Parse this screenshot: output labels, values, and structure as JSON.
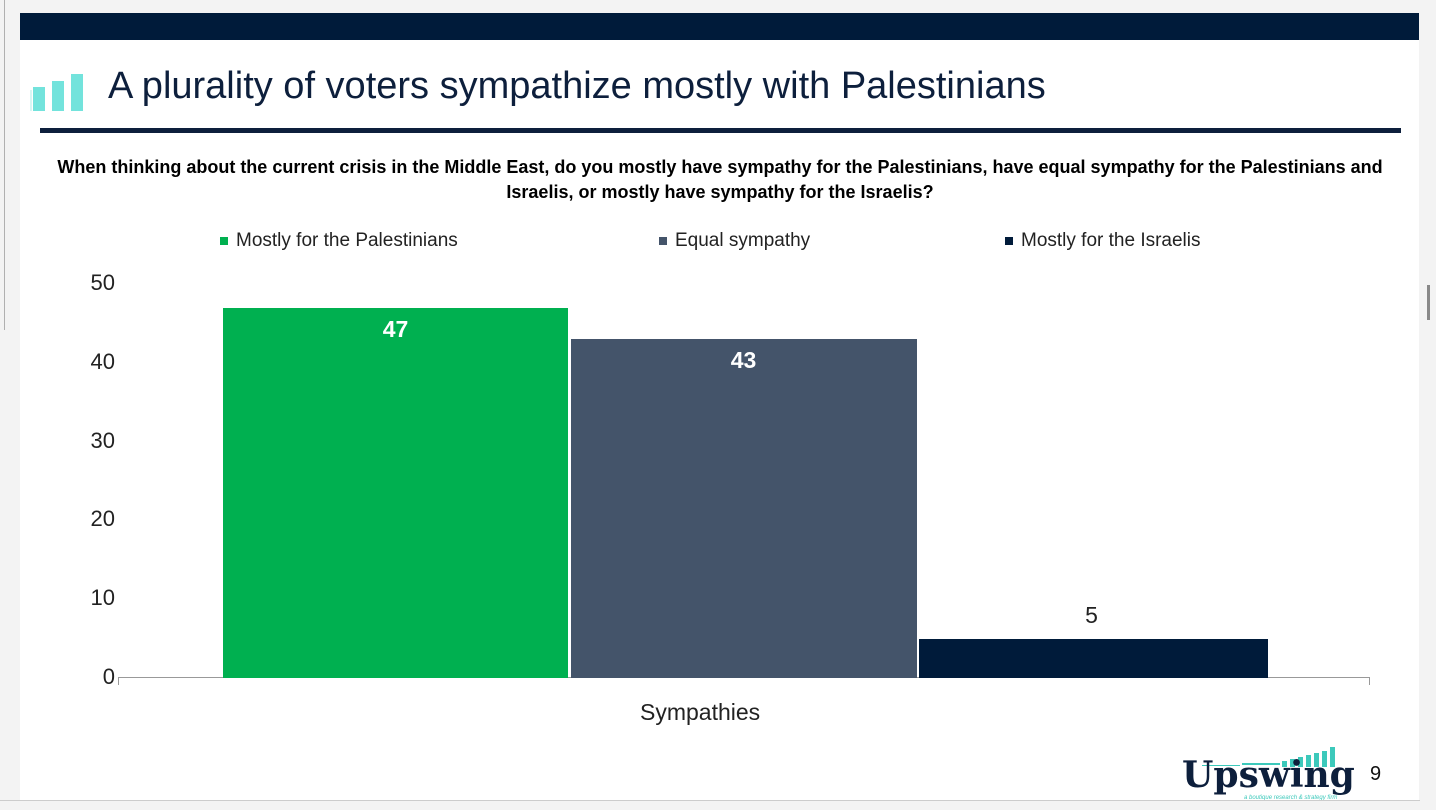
{
  "title": "A plurality of voters sympathize mostly with Palestinians",
  "question": "When thinking about the current crisis in the Middle East, do you mostly have sympathy for the Palestinians, have equal sympathy for the Palestinians and Israelis, or mostly have sympathy for the Israelis?",
  "page_number": "9",
  "logo": {
    "name": "Upswing",
    "tagline": "a boutique research & strategy firm"
  },
  "chart_data": {
    "type": "bar",
    "categories": [
      "Sympathies"
    ],
    "xlabel": "Sympathies",
    "ylim": [
      0,
      50
    ],
    "yticks": [
      "0",
      "10",
      "20",
      "30",
      "40",
      "50"
    ],
    "legend_position": "top",
    "series": [
      {
        "name": "Mostly for the Palestinians",
        "values": [
          47
        ],
        "label": "47",
        "color": "#00b050"
      },
      {
        "name": "Equal sympathy",
        "values": [
          43
        ],
        "label": "43",
        "color": "#44546a"
      },
      {
        "name": "Mostly for the Israelis",
        "values": [
          5
        ],
        "label": "5",
        "color": "#001b3a"
      }
    ]
  }
}
